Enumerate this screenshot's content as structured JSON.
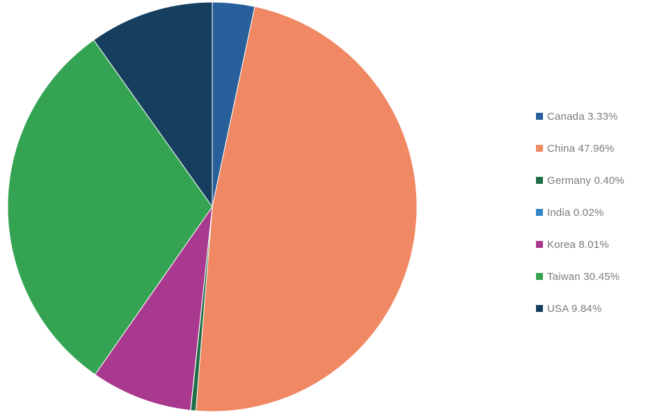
{
  "chart_data": {
    "type": "pie",
    "title": "",
    "legend_position": "right",
    "start_angle_deg": 0,
    "direction": "clockwise",
    "slices": [
      {
        "name": "Canada",
        "value": 3.33,
        "legend_label": "Canada 3.33%",
        "color": "#27609a"
      },
      {
        "name": "China",
        "value": 47.96,
        "legend_label": "China 47.96%",
        "color": "#ef8863"
      },
      {
        "name": "Germany",
        "value": 0.4,
        "legend_label": "Germany 0.40%",
        "color": "#1f6e45"
      },
      {
        "name": "India",
        "value": 0.02,
        "legend_label": "India 0.02%",
        "color": "#2f86c6"
      },
      {
        "name": "Korea",
        "value": 8.01,
        "legend_label": "Korea 8.01%",
        "color": "#a9398e"
      },
      {
        "name": "Taiwan",
        "value": 30.45,
        "legend_label": "Taiwan 30.45%",
        "color": "#35a452"
      },
      {
        "name": "USA",
        "value": 9.84,
        "legend_label": "USA 9.84%",
        "color": "#163f5f"
      }
    ]
  }
}
